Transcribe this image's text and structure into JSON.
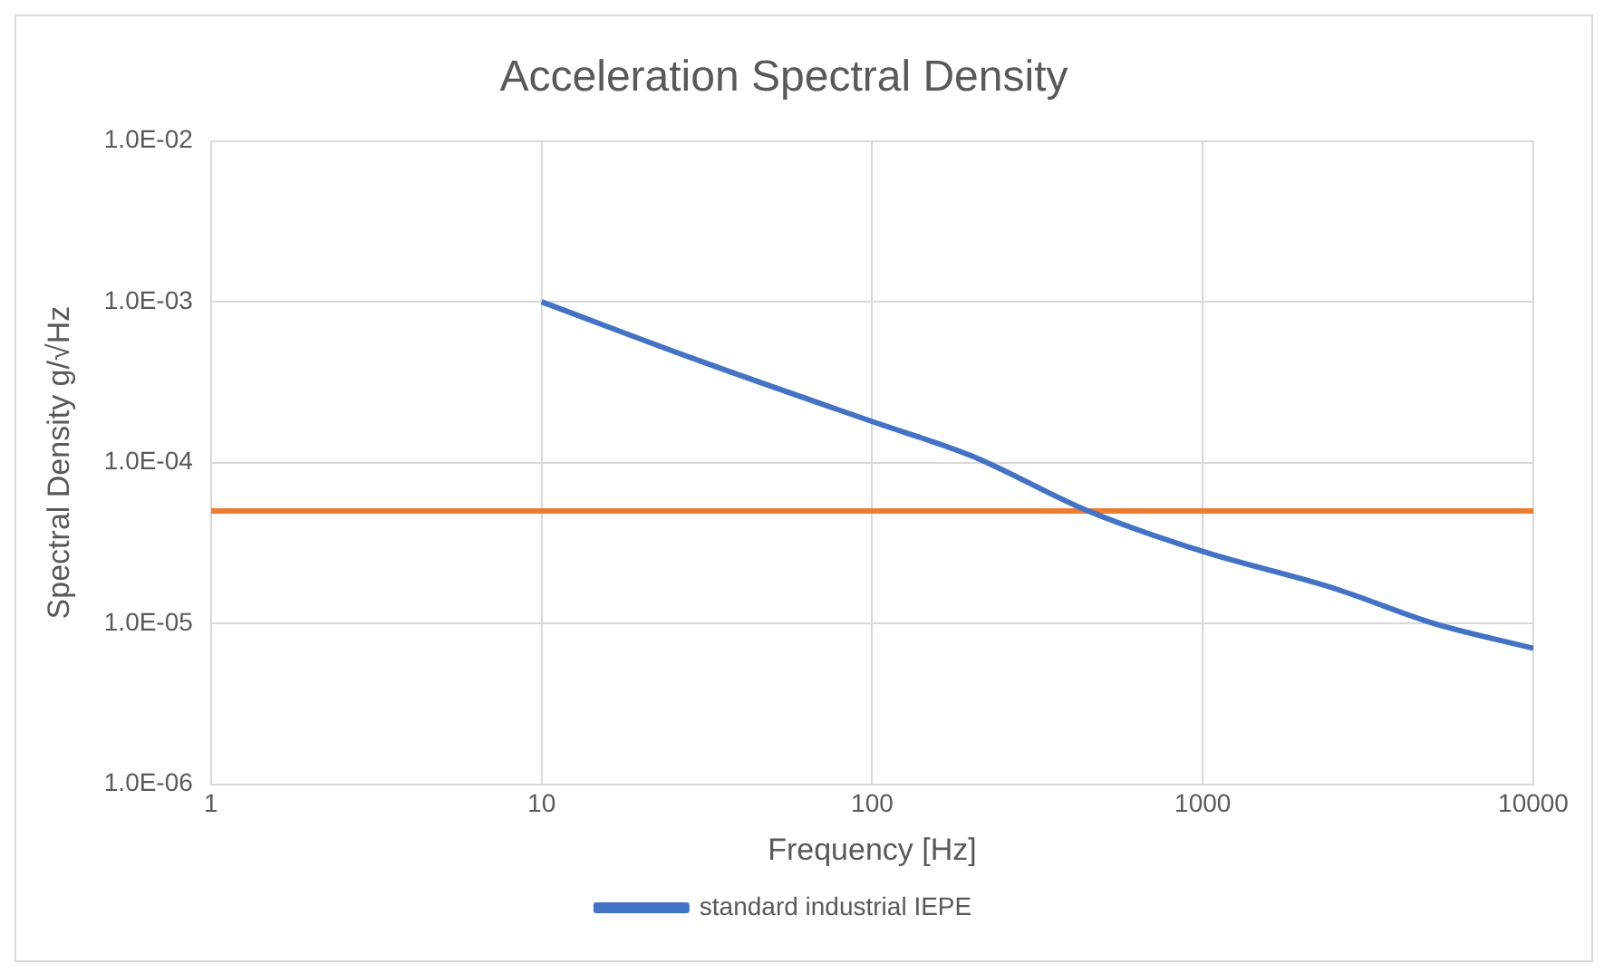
{
  "chart_data": {
    "type": "line",
    "title": "Acceleration Spectral Density",
    "xlabel": "Frequency [Hz]",
    "ylabel": "Spectral Density g/√Hz",
    "log": "xy",
    "grid": true,
    "legend": "bottom",
    "xlim": [
      1,
      10000
    ],
    "xticks": [
      1,
      10,
      100,
      1000,
      10000
    ],
    "ylim": [
      1e-06,
      0.01
    ],
    "yticks": [
      {
        "value": 1e-06,
        "label": "1.0E-06"
      },
      {
        "value": 1e-05,
        "label": "1.0E-05"
      },
      {
        "value": 0.0001,
        "label": "1.0E-04"
      },
      {
        "value": 0.001,
        "label": "1.0E-03"
      },
      {
        "value": 0.01,
        "label": "1.0E-02"
      }
    ],
    "series": [
      {
        "name": "standard industrial IEPE",
        "color": "#4472c4",
        "x": [
          10,
          30,
          100,
          200,
          450,
          1000,
          2500,
          5000,
          10000
        ],
        "values": [
          0.001,
          0.00043,
          0.00018,
          0.00011,
          5e-05,
          2.8e-05,
          1.65e-05,
          1e-05,
          7e-06
        ]
      },
      {
        "color": "#ed7d31",
        "x": [
          1,
          10000
        ],
        "values": [
          5e-05,
          5e-05
        ]
      }
    ]
  }
}
